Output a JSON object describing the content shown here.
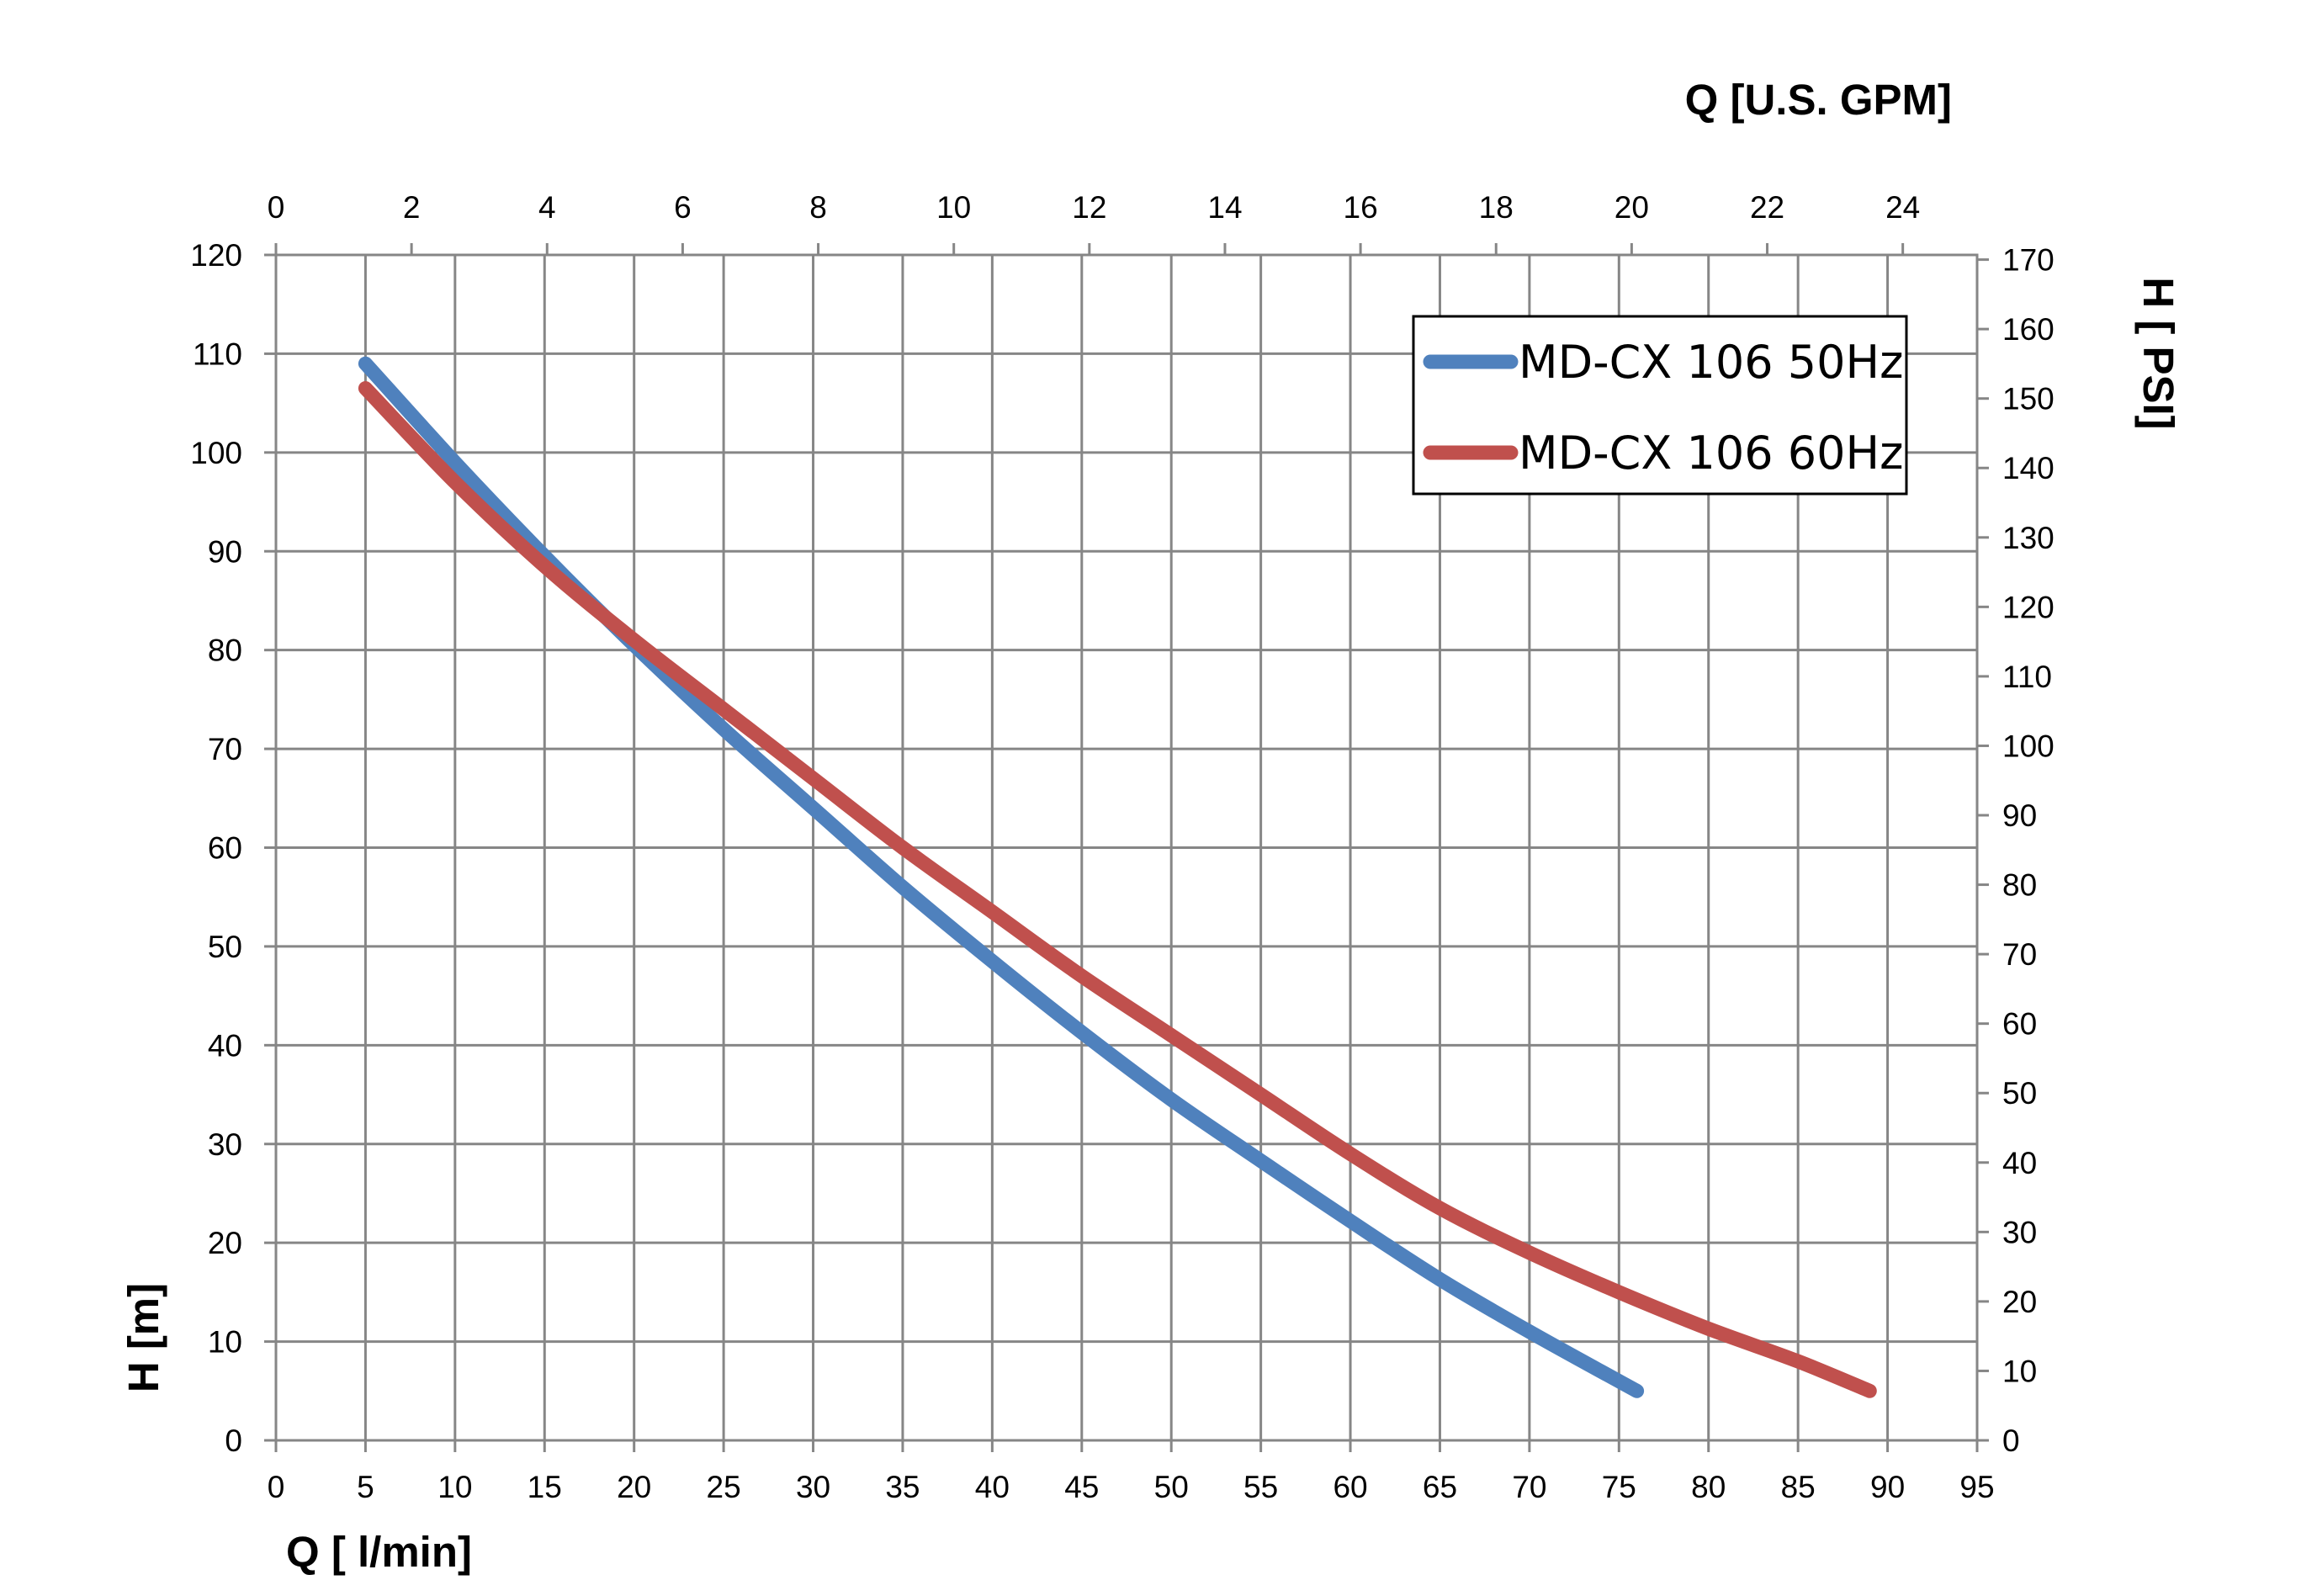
{
  "chart_data": {
    "type": "line",
    "x_axis_bottom": {
      "label": "Q [ l/min]",
      "min": 0,
      "max": 95,
      "step": 5,
      "ticks": [
        "0",
        "5",
        "10",
        "15",
        "20",
        "25",
        "30",
        "35",
        "40",
        "45",
        "50",
        "55",
        "60",
        "65",
        "70",
        "75",
        "80",
        "85",
        "90",
        "95"
      ]
    },
    "x_axis_top": {
      "label": "Q  [U.S. GPM]",
      "ticks": [
        "0",
        "2",
        "4",
        "6",
        "8",
        "10",
        "12",
        "14",
        "16",
        "18",
        "20",
        "22",
        "24"
      ]
    },
    "y_axis_left": {
      "label": "H [m]",
      "min": 0,
      "max": 120,
      "step": 10,
      "ticks": [
        "0",
        "10",
        "20",
        "30",
        "40",
        "50",
        "60",
        "70",
        "80",
        "90",
        "100",
        "110",
        "120"
      ]
    },
    "y_axis_right": {
      "label": "H [ PSI]",
      "ticks": [
        "0",
        "10",
        "20",
        "30",
        "40",
        "50",
        "60",
        "70",
        "80",
        "90",
        "100",
        "110",
        "120",
        "130",
        "140",
        "150",
        "160",
        "170"
      ]
    },
    "grid": true,
    "legend_position": "top-right",
    "series": [
      {
        "name": "MD-CX 106 50Hz",
        "color": "#4f81bd",
        "points": [
          [
            5,
            109
          ],
          [
            10,
            99
          ],
          [
            15,
            89.5
          ],
          [
            20,
            80.5
          ],
          [
            25,
            72
          ],
          [
            30,
            64
          ],
          [
            35,
            56
          ],
          [
            40,
            48.5
          ],
          [
            45,
            41.3
          ],
          [
            50,
            34.5
          ],
          [
            55,
            28.3
          ],
          [
            60,
            22.2
          ],
          [
            65,
            16.3
          ],
          [
            70,
            11
          ],
          [
            76,
            5
          ]
        ]
      },
      {
        "name": "MD-CX 106 60Hz",
        "color": "#c0504d",
        "points": [
          [
            5,
            106.5
          ],
          [
            10,
            97
          ],
          [
            15,
            88.5
          ],
          [
            20,
            81
          ],
          [
            25,
            74
          ],
          [
            30,
            67
          ],
          [
            35,
            60
          ],
          [
            40,
            53.5
          ],
          [
            45,
            47
          ],
          [
            50,
            41
          ],
          [
            55,
            35
          ],
          [
            60,
            29
          ],
          [
            65,
            23.5
          ],
          [
            70,
            19
          ],
          [
            75,
            15
          ],
          [
            80,
            11.3
          ],
          [
            85,
            8
          ],
          [
            89,
            5
          ]
        ]
      }
    ]
  }
}
